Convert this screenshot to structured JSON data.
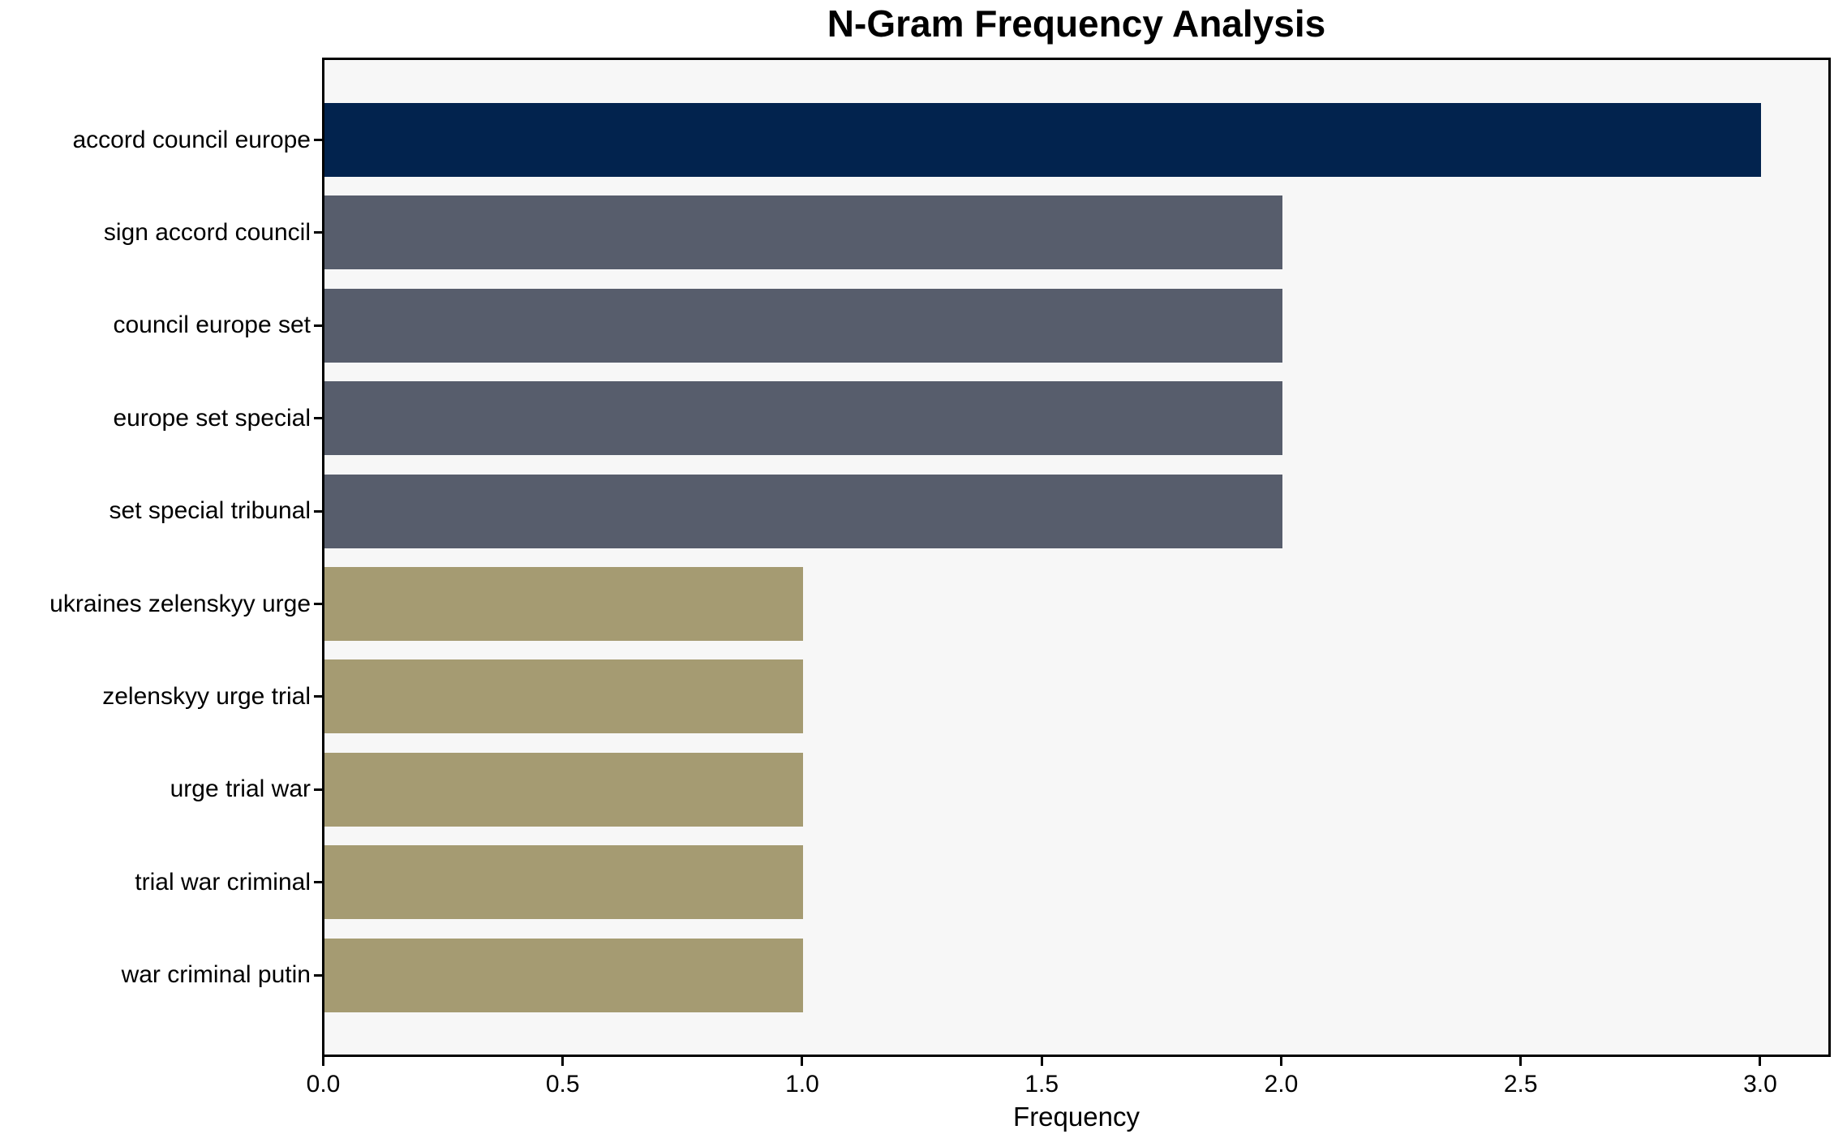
{
  "chart_data": {
    "type": "bar",
    "orientation": "horizontal",
    "title": "N-Gram Frequency Analysis",
    "xlabel": "Frequency",
    "ylabel": "",
    "categories": [
      "accord council europe",
      "sign accord council",
      "council europe set",
      "europe set special",
      "set special tribunal",
      "ukraines zelenskyy urge",
      "zelenskyy urge trial",
      "urge trial war",
      "trial war criminal",
      "war criminal putin"
    ],
    "values": [
      3,
      2,
      2,
      2,
      2,
      1,
      1,
      1,
      1,
      1
    ],
    "bar_colors": [
      "#02234e",
      "#575d6c",
      "#575d6c",
      "#575d6c",
      "#575d6c",
      "#a59b72",
      "#a59b72",
      "#a59b72",
      "#a59b72",
      "#a59b72"
    ],
    "x_ticks": [
      "0.0",
      "0.5",
      "1.0",
      "1.5",
      "2.0",
      "2.5",
      "3.0"
    ],
    "xlim": [
      0,
      3.15
    ],
    "grid": false,
    "legend": null,
    "plot_background": "#f7f7f7",
    "figure_background": "#ffffff",
    "spine_color": "#000000",
    "text_color": "#000000"
  }
}
